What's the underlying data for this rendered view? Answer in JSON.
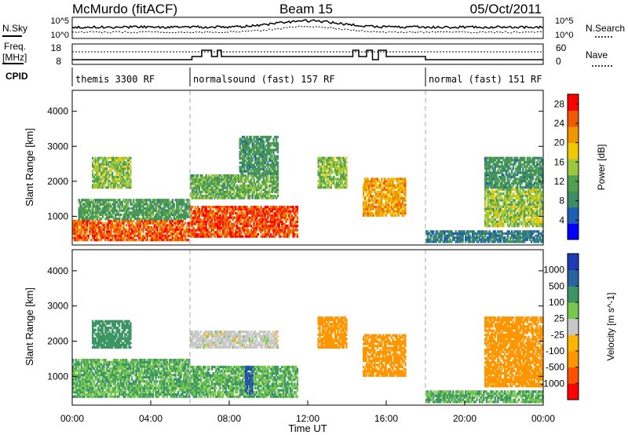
{
  "header": {
    "station": "McMurdo (fitACF)",
    "beam": "Beam 15",
    "date": "05/Oct/2011"
  },
  "nsky_panel": {
    "left_label": "N.Sky",
    "right_label": "N.Search",
    "left_ticks": [
      "10^5",
      "10^0"
    ],
    "right_ticks": [
      "10^5",
      "10^0"
    ]
  },
  "freq_panel": {
    "left_label_1": "Freq.",
    "left_label_2": "[MHz]",
    "right_label": "Nave",
    "left_ticks": [
      "18",
      "8"
    ],
    "right_ticks": [
      "60",
      "0"
    ]
  },
  "cpid": {
    "label": "CPID",
    "segments": [
      {
        "name": "themis 3300 RF",
        "start_h": 0,
        "end_h": 6
      },
      {
        "name": "normalsound (fast) 157 RF",
        "start_h": 6,
        "end_h": 18
      },
      {
        "name": "normal (fast) 151 RF",
        "start_h": 18,
        "end_h": 24
      }
    ]
  },
  "colors": {
    "power_scale": [
      "#0000ff",
      "#1e5fb4",
      "#3c8c64",
      "#50a050",
      "#9bc83c",
      "#f0c800",
      "#f09600",
      "#f05a00",
      "#ff0000"
    ],
    "velocity_scale": [
      "#ff0000",
      "#ff5000",
      "#ff9600",
      "#ffb400",
      "#c8c8c8",
      "#78c850",
      "#3c9664",
      "#2864a0",
      "#1e3cb4"
    ]
  },
  "chart_data": [
    {
      "type": "heatmap",
      "name": "power",
      "xlabel": "",
      "ylabel": "Slant Range [km]",
      "xlim": [
        0,
        24
      ],
      "ylim": [
        180,
        4600
      ],
      "yticks": [
        "1000",
        "2000",
        "3000",
        "4000"
      ],
      "colorbar_label": "Power [dB]",
      "colorbar_ticks": [
        "4",
        "8",
        "12",
        "16",
        "20",
        "24",
        "28"
      ],
      "colorbar_range": [
        0,
        30
      ],
      "regions": [
        {
          "t0": 0.0,
          "t1": 6.0,
          "r0": 300,
          "r1": 900,
          "value": 26
        },
        {
          "t0": 0.3,
          "t1": 6.0,
          "r0": 900,
          "r1": 1500,
          "value": 10
        },
        {
          "t0": 1.0,
          "t1": 3.0,
          "r0": 1800,
          "r1": 2700,
          "value": 14
        },
        {
          "t0": 6.0,
          "t1": 11.5,
          "r0": 400,
          "r1": 1300,
          "value": 27
        },
        {
          "t0": 6.0,
          "t1": 10.5,
          "r0": 1500,
          "r1": 2200,
          "value": 12
        },
        {
          "t0": 8.5,
          "t1": 10.5,
          "r0": 2200,
          "r1": 3300,
          "value": 9
        },
        {
          "t0": 12.5,
          "t1": 14.0,
          "r0": 1800,
          "r1": 2700,
          "value": 14
        },
        {
          "t0": 14.8,
          "t1": 17.0,
          "r0": 1000,
          "r1": 2100,
          "value": 22
        },
        {
          "t0": 18.0,
          "t1": 24.0,
          "r0": 250,
          "r1": 600,
          "value": 6
        },
        {
          "t0": 21.0,
          "t1": 24.0,
          "r0": 700,
          "r1": 1800,
          "value": 15
        },
        {
          "t0": 21.0,
          "t1": 24.0,
          "r0": 1800,
          "r1": 2700,
          "value": 9
        }
      ]
    },
    {
      "type": "heatmap",
      "name": "velocity",
      "xlabel": "Time UT",
      "ylabel": "Slant Range [km]",
      "xlim": [
        0,
        24
      ],
      "ylim": [
        180,
        4600
      ],
      "xticks": [
        "00:00",
        "04:00",
        "08:00",
        "12:00",
        "16:00",
        "20:00",
        "00:00"
      ],
      "yticks": [
        "1000",
        "2000",
        "3000",
        "4000"
      ],
      "colorbar_label": "Velocity [m s^-1]",
      "colorbar_ticks": [
        "1000",
        "500",
        "100",
        "25",
        "-25",
        "-100",
        "-500",
        "-1000"
      ],
      "regions": [
        {
          "t0": 0.0,
          "t1": 6.0,
          "r0": 400,
          "r1": 1500,
          "value": 100
        },
        {
          "t0": 1.0,
          "t1": 3.0,
          "r0": 1800,
          "r1": 2600,
          "value": 300
        },
        {
          "t0": 6.0,
          "t1": 11.5,
          "r0": 400,
          "r1": 1300,
          "value": 100
        },
        {
          "t0": 6.0,
          "t1": 10.5,
          "r0": 1800,
          "r1": 2300,
          "value": 0
        },
        {
          "t0": 8.8,
          "t1": 9.2,
          "r0": 500,
          "r1": 1300,
          "value": 900
        },
        {
          "t0": 12.5,
          "t1": 14.0,
          "r0": 1800,
          "r1": 2700,
          "value": -300
        },
        {
          "t0": 14.8,
          "t1": 17.0,
          "r0": 1000,
          "r1": 2200,
          "value": -300
        },
        {
          "t0": 18.0,
          "t1": 24.0,
          "r0": 250,
          "r1": 600,
          "value": 100
        },
        {
          "t0": 21.0,
          "t1": 24.0,
          "r0": 700,
          "r1": 2700,
          "value": -200
        }
      ]
    }
  ]
}
